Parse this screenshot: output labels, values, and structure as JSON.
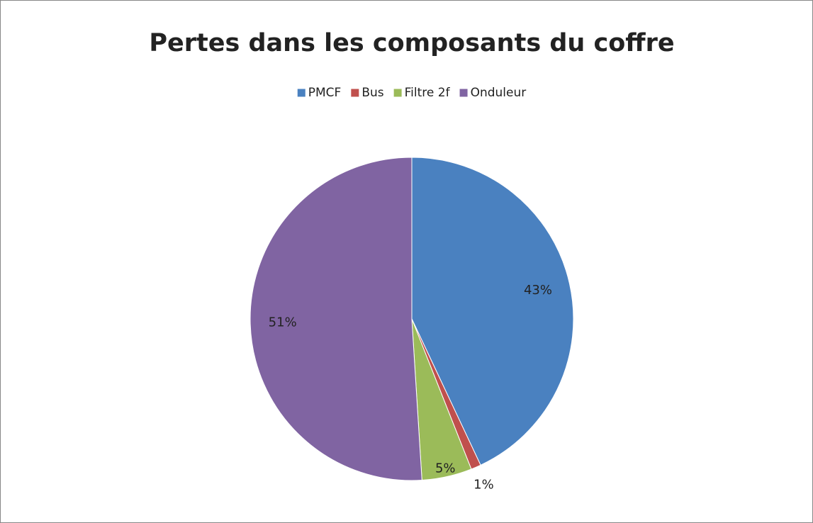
{
  "chart_data": {
    "type": "pie",
    "title": "Pertes dans les composants du coffre",
    "categories": [
      "PMCF",
      "Bus",
      "Filtre 2f",
      "Onduleur"
    ],
    "values": [
      43,
      1,
      5,
      51
    ],
    "value_labels": [
      "43%",
      "1%",
      "5%",
      "51%"
    ],
    "colors": [
      "#4a81c0",
      "#c0504d",
      "#9bbb59",
      "#8064a2"
    ],
    "legend": "top"
  }
}
